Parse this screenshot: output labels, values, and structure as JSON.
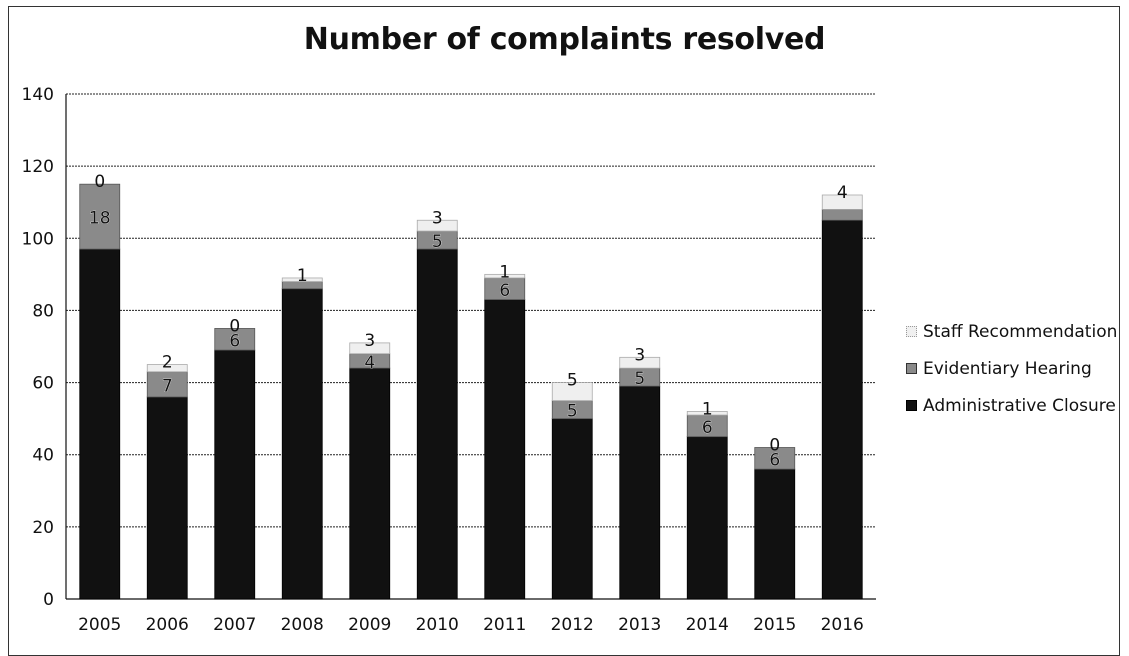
{
  "chart_data": {
    "type": "bar",
    "stacked": true,
    "title": "Number of complaints resolved",
    "xlabel": "",
    "ylabel": "",
    "categories": [
      "2005",
      "2006",
      "2007",
      "2008",
      "2009",
      "2010",
      "2011",
      "2012",
      "2013",
      "2014",
      "2015",
      "2016"
    ],
    "ylim": [
      0,
      140
    ],
    "yticks": [
      0,
      20,
      40,
      60,
      80,
      100,
      120,
      140
    ],
    "grid": true,
    "legend_position": "right",
    "series": [
      {
        "name": "Administrative Closure",
        "color": "#111111",
        "values": [
          97,
          56,
          69,
          86,
          64,
          97,
          83,
          50,
          59,
          45,
          36,
          105
        ],
        "labels": [
          "",
          "",
          "",
          "",
          "",
          "",
          "",
          "",
          "",
          "",
          "",
          ""
        ]
      },
      {
        "name": "Evidentiary Hearing",
        "color": "#8a8a8a",
        "values": [
          18,
          7,
          6,
          2,
          4,
          5,
          6,
          5,
          5,
          6,
          6,
          3
        ],
        "labels": [
          "18",
          "7",
          "6",
          "",
          "4",
          "5",
          "6",
          "5",
          "5",
          "6",
          "6",
          ""
        ]
      },
      {
        "name": "Staff Recommendation",
        "color": "#eeeeee",
        "values": [
          0,
          2,
          0,
          1,
          3,
          3,
          1,
          5,
          3,
          1,
          0,
          4
        ],
        "labels": [
          "0",
          "2",
          "0",
          "1",
          "3",
          "3",
          "1",
          "5",
          "3",
          "1",
          "0",
          "4"
        ]
      }
    ]
  }
}
